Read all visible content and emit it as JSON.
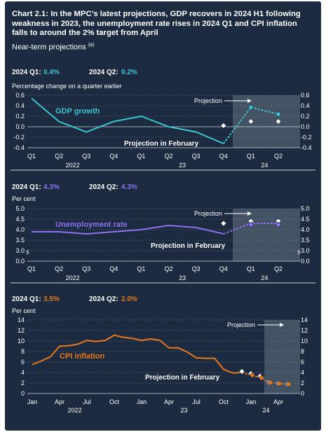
{
  "title": "Chart 2.1: In the MPC’s latest projections, GDP recovers in 2024 H1 following weakness in 2023, the unemployment rate rises in 2024 Q1 and CPI inflation falls to around the 2% target from April",
  "subtitle": "Near-term projections",
  "subtitle_note": "(a)",
  "colors": {
    "background": "#1c2b40",
    "gdp": "#3fc4cf",
    "unemployment": "#8d71ee",
    "cpi": "#e8781e",
    "projection_shade": "#4a5a6b",
    "february_marker": "#ffffff"
  },
  "panels": [
    {
      "q1_label": "2024 Q1:",
      "q1_value": "0.4%",
      "q2_label": "2024 Q2:",
      "q2_value": "0.2%",
      "units": "Percentage change on a quarter earlier",
      "series_label": "GDP growth",
      "february_label": "Projection in February",
      "projection_label": "Projection"
    },
    {
      "q1_label": "2024 Q1:",
      "q1_value": "4.3%",
      "q2_label": "2024 Q2:",
      "q2_value": "4.3%",
      "units": "Per cent",
      "series_label": "Unemployment rate",
      "february_label": "Projection in February",
      "projection_label": "Projection"
    },
    {
      "q1_label": "2024 Q1:",
      "q1_value": "3.5%",
      "q2_label": "2024 Q2:",
      "q2_value": "2.0%",
      "units": "Per cent",
      "series_label": "CPI inflation",
      "february_label": "Projection in February",
      "projection_label": "Projection"
    }
  ],
  "chart_data": [
    {
      "type": "line",
      "name": "GDP growth",
      "x": [
        "Q1",
        "Q2",
        "Q3",
        "Q4",
        "Q1",
        "Q2",
        "Q3",
        "Q4",
        "Q1",
        "Q2"
      ],
      "x_groups": [
        {
          "label": "2022",
          "start": 0,
          "end": 3
        },
        {
          "label": "23",
          "start": 4,
          "end": 7
        },
        {
          "label": "24",
          "start": 8,
          "end": 9
        }
      ],
      "ylim": [
        -0.4,
        0.6
      ],
      "yticks": [
        "0.6",
        "0.4",
        "0.2",
        "0.0",
        "-0.2",
        "-0.4"
      ],
      "ytick_values": [
        0.6,
        0.4,
        0.2,
        0.0,
        -0.2,
        -0.4
      ],
      "outturn": [
        0.54,
        0.1,
        -0.1,
        0.1,
        0.2,
        0.0,
        -0.1,
        -0.32
      ],
      "latest_projection": [
        0.37,
        0.24
      ],
      "february_projection": [
        0.02,
        0.1,
        0.1
      ],
      "february_start_index": 7,
      "projection_start_index": 8
    },
    {
      "type": "line",
      "name": "Unemployment rate",
      "x": [
        "Q1",
        "Q2",
        "Q3",
        "Q4",
        "Q1",
        "Q2",
        "Q3",
        "Q4",
        "Q1",
        "Q2"
      ],
      "x_groups": [
        {
          "label": "2022",
          "start": 0,
          "end": 3
        },
        {
          "label": "23",
          "start": 4,
          "end": 7
        },
        {
          "label": "24",
          "start": 8,
          "end": 9
        }
      ],
      "ylim": [
        0.0,
        5.0
      ],
      "yticks": [
        "5.0",
        "4.5",
        "4.0",
        "3.5",
        "3.0",
        "0.0"
      ],
      "ytick_values": [
        5.0,
        4.5,
        4.0,
        3.5,
        3.0,
        0.0
      ],
      "axis_break_below": 3.0,
      "outturn": [
        3.9,
        3.9,
        3.8,
        3.9,
        4.0,
        4.2,
        4.1,
        3.8
      ],
      "latest_projection": [
        4.3,
        4.3
      ],
      "february_projection": [
        4.3,
        4.4,
        4.4
      ],
      "february_start_index": 7,
      "projection_start_index": 8
    },
    {
      "type": "line",
      "name": "CPI inflation",
      "x_ticks": [
        "Jan",
        "Apr",
        "Jul",
        "Oct",
        "Jan",
        "Apr",
        "Jul",
        "Oct",
        "Jan",
        "Apr"
      ],
      "x_groups": [
        {
          "label": "2022",
          "start": 0,
          "end": 3
        },
        {
          "label": "23",
          "start": 4,
          "end": 7
        },
        {
          "label": "24",
          "start": 8,
          "end": 9
        }
      ],
      "ylim": [
        0,
        14
      ],
      "yticks": [
        "14",
        "12",
        "10",
        "8",
        "6",
        "4",
        "2",
        "0"
      ],
      "ytick_values": [
        14,
        12,
        10,
        8,
        6,
        4,
        2,
        0
      ],
      "outturn": [
        5.5,
        6.2,
        7.0,
        9.0,
        9.1,
        9.4,
        10.1,
        9.9,
        10.1,
        11.1,
        10.7,
        10.5,
        10.1,
        10.4,
        10.1,
        8.7,
        8.7,
        7.9,
        6.8,
        6.7,
        6.7,
        4.6,
        3.9,
        4.0
      ],
      "latest_projection": [
        4.0,
        3.5,
        3.0,
        2.1,
        1.9,
        1.8
      ],
      "february_projection": [
        4.2,
        3.8,
        3.3,
        2.1,
        1.9,
        1.8
      ],
      "months_start": "2022-01",
      "projection_start_month": "2024-01",
      "projection_shade_start_month": "2024-04"
    }
  ]
}
